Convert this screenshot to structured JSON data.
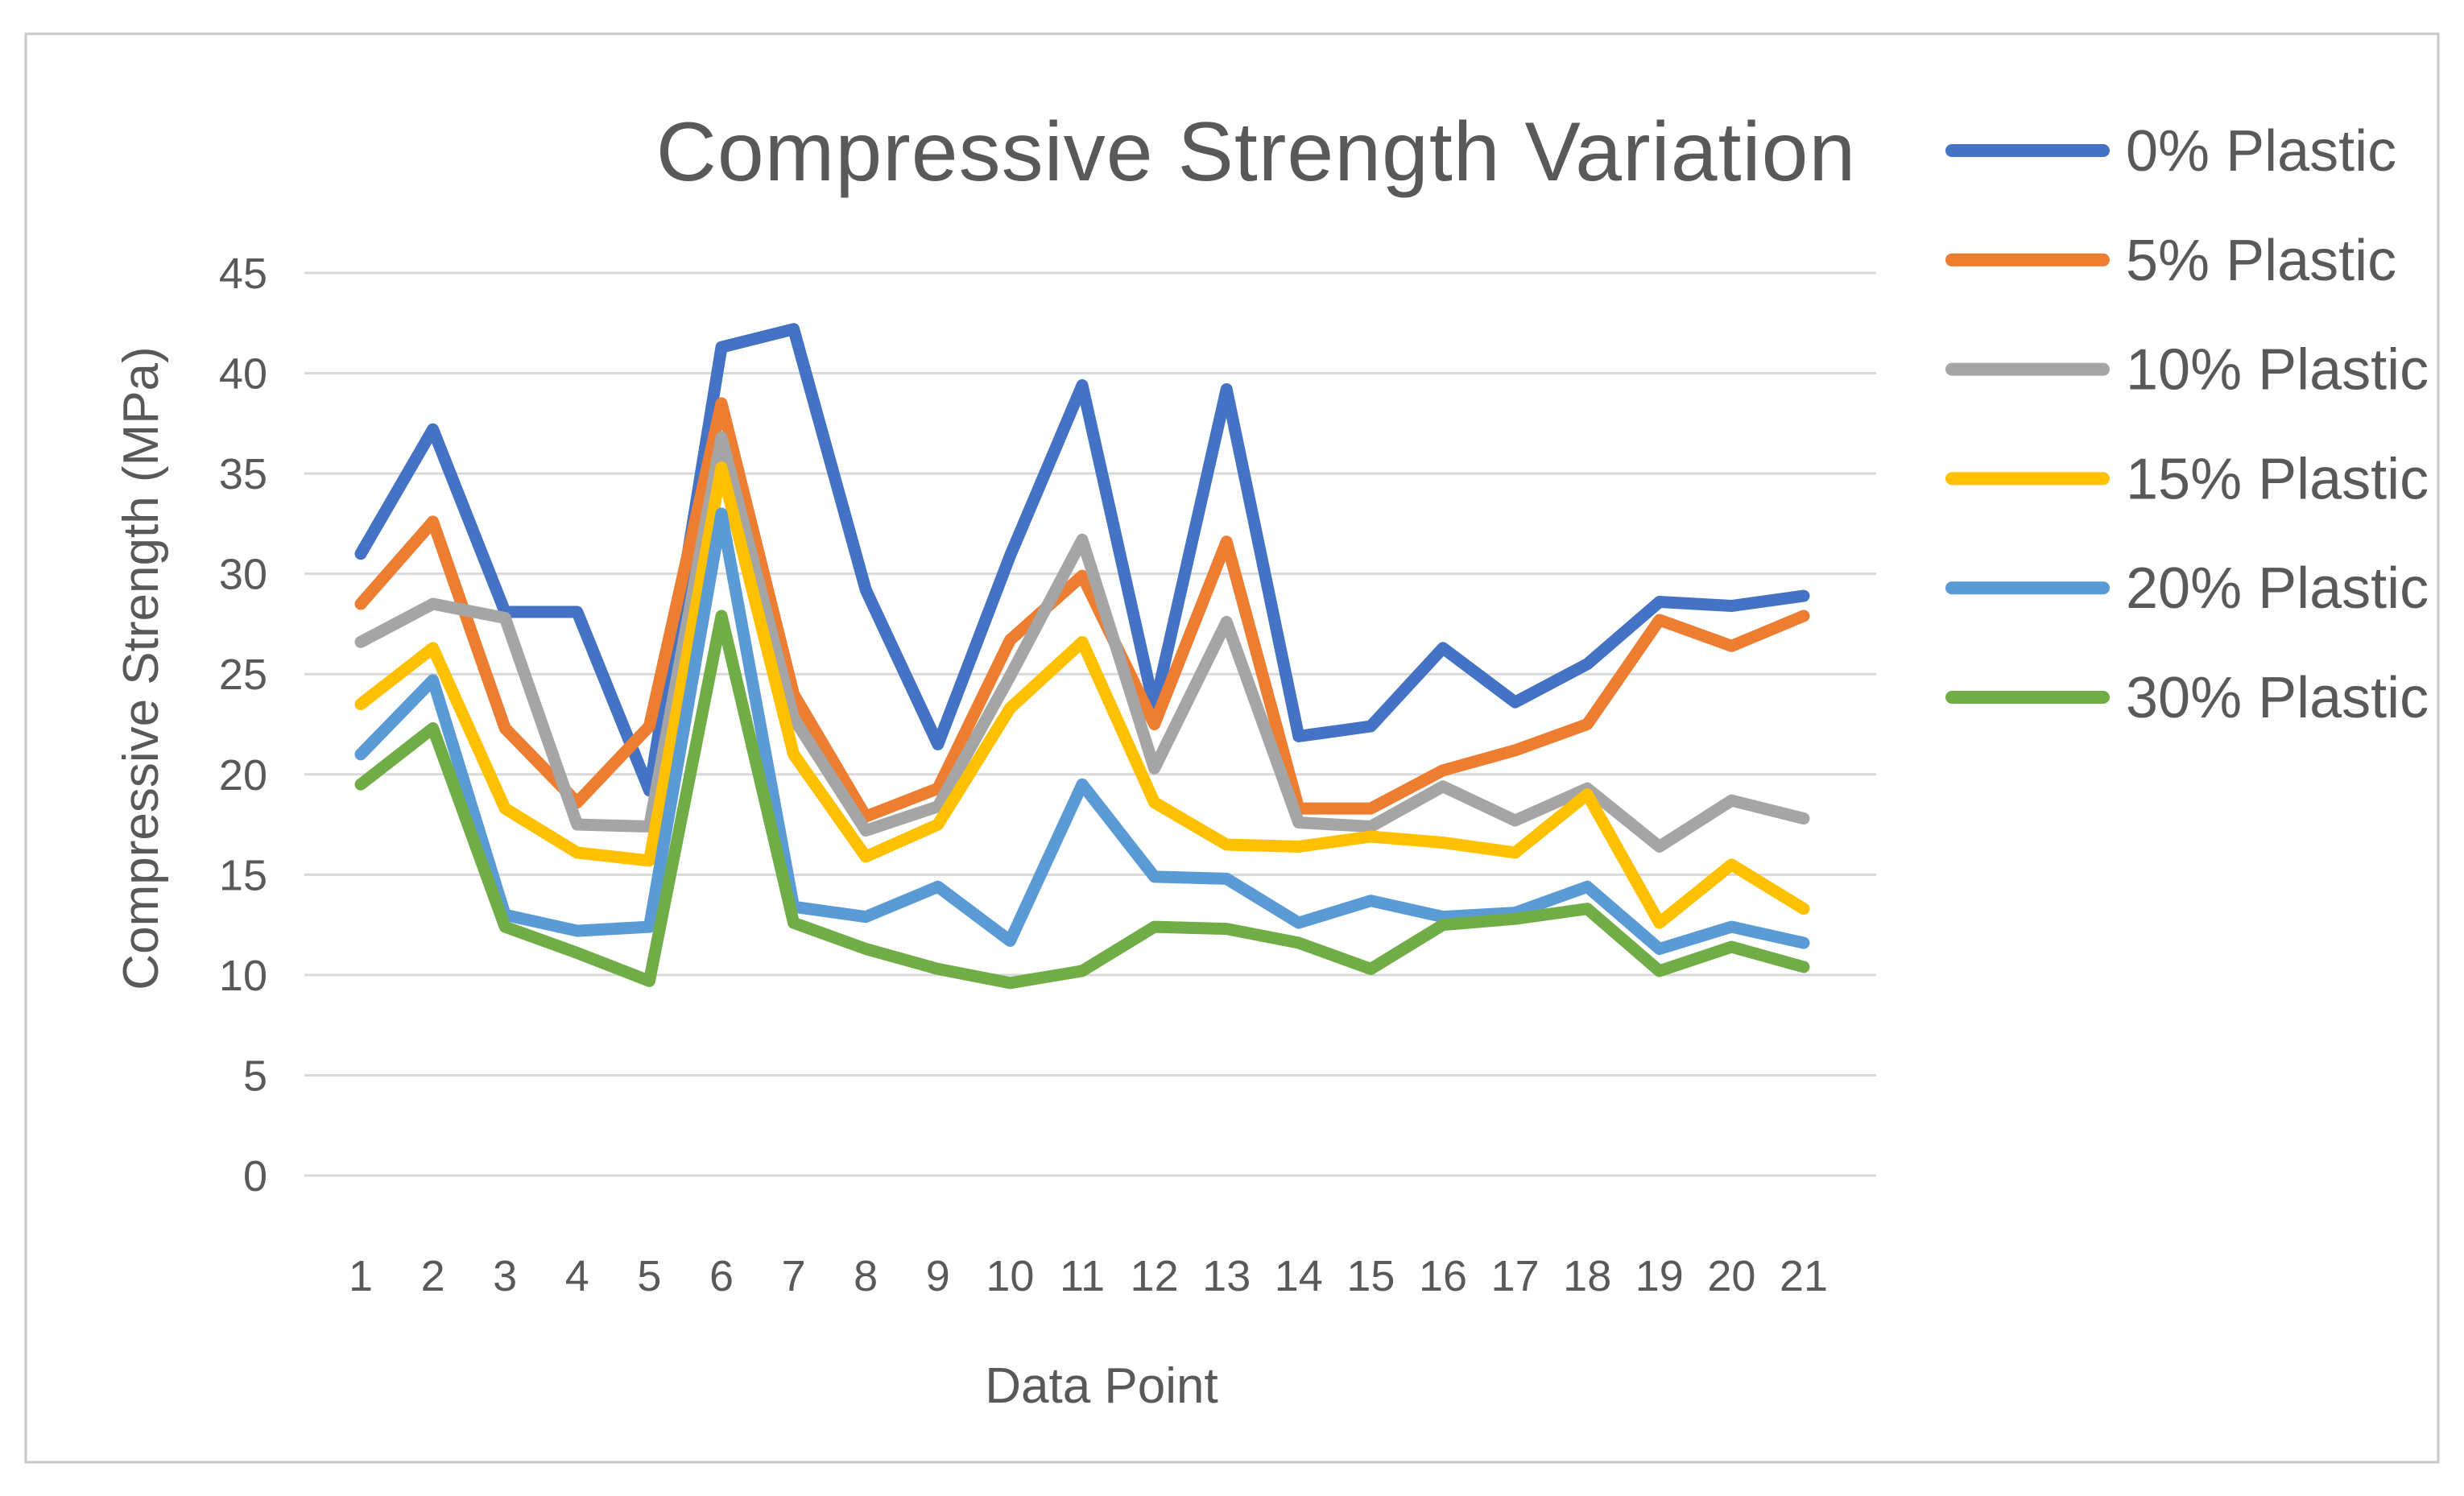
{
  "page": {
    "background_color": "#ffffff",
    "frame_border_color": "#c9c9c9"
  },
  "chart_data": {
    "type": "line",
    "title": "Compressive Strength Variation",
    "xlabel": "Data Point",
    "ylabel": "Compressive Strength (MPa)",
    "categories": [
      1,
      2,
      3,
      4,
      5,
      6,
      7,
      8,
      9,
      10,
      11,
      12,
      13,
      14,
      15,
      16,
      17,
      18,
      19,
      20,
      21
    ],
    "ylim": [
      0,
      45
    ],
    "ytick_step": 5,
    "grid": true,
    "gridline_color": "#d9d9d9",
    "text_color": "#595959",
    "legend_position": "right",
    "series": [
      {
        "name": "0% Plastic",
        "color": "#4472C4",
        "values": [
          31.0,
          37.2,
          28.1,
          28.1,
          19.2,
          41.3,
          42.2,
          29.2,
          21.5,
          30.9,
          39.4,
          23.3,
          39.2,
          21.9,
          22.4,
          26.3,
          23.6,
          25.5,
          28.6,
          28.4,
          28.9
        ]
      },
      {
        "name": "5% Plastic",
        "color": "#ED7D31",
        "values": [
          28.5,
          32.6,
          22.3,
          18.6,
          22.4,
          38.5,
          24.0,
          17.9,
          19.3,
          26.7,
          29.9,
          22.5,
          31.6,
          18.3,
          18.3,
          20.2,
          21.2,
          22.5,
          27.7,
          26.4,
          27.9
        ]
      },
      {
        "name": "10% Plastic",
        "color": "#A5A5A5",
        "values": [
          26.6,
          28.5,
          27.8,
          17.5,
          17.4,
          36.8,
          22.8,
          17.2,
          18.4,
          24.9,
          31.7,
          20.3,
          27.6,
          17.6,
          17.4,
          19.4,
          17.7,
          19.3,
          16.4,
          18.7,
          17.8
        ]
      },
      {
        "name": "15% Plastic",
        "color": "#FFC000",
        "values": [
          23.5,
          26.3,
          18.3,
          16.1,
          15.7,
          35.3,
          21.0,
          15.9,
          17.5,
          23.3,
          26.6,
          18.6,
          16.5,
          16.4,
          16.9,
          16.6,
          16.1,
          19.0,
          12.6,
          15.5,
          13.3
        ]
      },
      {
        "name": "20% Plastic",
        "color": "#5B9BD5",
        "values": [
          21.0,
          24.7,
          13.0,
          12.2,
          12.4,
          33.0,
          13.4,
          12.9,
          14.4,
          11.7,
          19.5,
          14.9,
          14.8,
          12.6,
          13.7,
          12.9,
          13.1,
          14.4,
          11.3,
          12.4,
          11.6
        ]
      },
      {
        "name": "30% Plastic",
        "color": "#70AD47",
        "values": [
          19.5,
          22.3,
          12.4,
          11.1,
          9.7,
          27.9,
          12.6,
          11.3,
          10.3,
          9.6,
          10.2,
          12.4,
          12.3,
          11.6,
          10.3,
          12.5,
          12.8,
          13.3,
          10.2,
          11.4,
          10.4
        ]
      }
    ]
  }
}
